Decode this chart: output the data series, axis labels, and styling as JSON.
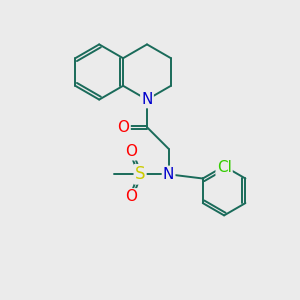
{
  "bg_color": "#ebebeb",
  "atom_colors": {
    "C": "#1a6b5a",
    "N": "#0000cc",
    "O": "#ff0000",
    "S": "#cccc00",
    "Cl": "#33cc00"
  },
  "bond_color": "#1a6b5a",
  "bond_lw": 1.4,
  "label_fontsize": 10,
  "figsize": [
    3.0,
    3.0
  ],
  "dpi": 100
}
